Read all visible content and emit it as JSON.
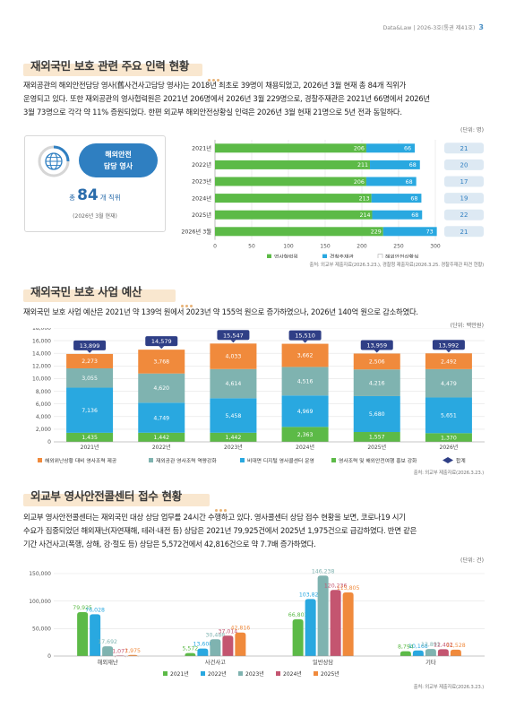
{
  "header": {
    "text": "Data&Law | 2026-3호(통권 제41호)",
    "page": "3"
  },
  "section1": {
    "title": "재외국민 보호 관련 주요 인력 현황",
    "lines": [
      "재외공관의 해외안전담당 영사(舊사건사고담당 영사)는 2018년 최초로 39명이 채용되었고, 2026년 3월 현재 총 84개 직위가",
      "운영되고 있다. 또한 재외공관의 영사협력원은 2021년 206명에서 2026년 3월 229명으로, 경찰주재관은 2021년 66명에서 2026년",
      "3월 73명으로 각각 약 11% 증원되었다. 한편 외교부 해외안전상황실 인력은 2026년 3월 현재 21명으로 5년 전과 동일하다."
    ],
    "unit": "(단위: 명)",
    "staff": {
      "label_line1": "해외안전",
      "label_line2": "담당 영사",
      "total_prefix": "총",
      "total_value": "84",
      "total_suffix": "개 직위",
      "note": "(2026년 3월 현재)"
    },
    "source": "출처: 외교부 제출자료(2026.3.23.), 경찰청 제출자료(2026.3.25. 경찰주재관 파견 현황)"
  },
  "section2": {
    "title": "재외국민 보호 사업 예산",
    "lines": [
      "재외국민 보호 사업 예산은 2021년 약 139억 원에서 2023년 약 155억 원으로 증가하였으나, 2026년 140억 원으로 감소하였다."
    ],
    "unit": "(단위: 백만원)",
    "source": "출처: 외교부 제출자료(2026.3.23.)"
  },
  "section3": {
    "title": "외교부 영사안전콜센터 접수 현황",
    "lines": [
      "외교부 영사안전콜센터는 재외국민 대상 상담 업무를 24시간 수행하고 있다. 영사콜센터 상담 접수 현황을 보면, 코로나19 시기",
      "수요가 집중되었던 해외재난(자연재해, 테러·내전 등) 상담은 2021년 79,925건에서 2025년 1,975건으로 급감하였다. 반면 같은",
      "기간 사건사고(폭행, 상해, 강·절도 등) 상담은 5,572건에서 42,816건으로 약 7.7배 증가하였다."
    ],
    "unit": "(단위: 건)",
    "source": "출처: 외교부 제출자료(2026.3.23.)"
  },
  "colors": {
    "green": "#5cba47",
    "blue": "#29a8e0",
    "teal": "#7fb3b0",
    "orange": "#f08a3c",
    "rose": "#c45570",
    "navy": "#2f3f86"
  },
  "chart_data": [
    {
      "type": "bar",
      "orientation": "horizontal",
      "stacked": true,
      "categories": [
        "2021년",
        "2022년",
        "2023년",
        "2024년",
        "2025년",
        "2026년 3월"
      ],
      "series": [
        {
          "name": "영사협력원",
          "values": [
            206,
            211,
            206,
            213,
            214,
            229
          ]
        },
        {
          "name": "경찰주재관",
          "values": [
            66,
            68,
            68,
            68,
            68,
            73
          ]
        },
        {
          "name": "해외안전상황실",
          "values": [
            21,
            20,
            17,
            19,
            22,
            21
          ]
        }
      ],
      "xlim": [
        0,
        300
      ],
      "xticks": [
        0,
        50,
        100,
        150,
        200,
        250,
        300
      ],
      "grid": true,
      "legend": "bottom-right"
    },
    {
      "type": "bar",
      "stacked": true,
      "categories": [
        "2021년",
        "2022년",
        "2023년",
        "2024년",
        "2025년",
        "2026년"
      ],
      "series": [
        {
          "name": "영사조력 및 해외안전여행 홍보 강화",
          "values": [
            1435,
            1442,
            1442,
            2363,
            1557,
            1370
          ]
        },
        {
          "name": "비대면 디지털 영사콜센터 운영",
          "values": [
            7136,
            4749,
            5458,
            4969,
            5680,
            5651
          ]
        },
        {
          "name": "재외공관 영사조력 역량강화",
          "values": [
            3055,
            4620,
            4614,
            4516,
            4216,
            4479
          ]
        },
        {
          "name": "해외위난상황 대비 영사조력 제공",
          "values": [
            2273,
            3768,
            4033,
            3662,
            2506,
            2492
          ]
        }
      ],
      "totals": {
        "name": "합계",
        "values": [
          13899,
          14579,
          15547,
          15510,
          13959,
          13992
        ]
      },
      "ylim": [
        0,
        18000
      ],
      "yticks": [
        0,
        2000,
        4000,
        6000,
        8000,
        10000,
        12000,
        14000,
        16000,
        18000
      ],
      "grid": true,
      "legend": "bottom"
    },
    {
      "type": "bar",
      "categories": [
        "해외재난",
        "사건사고",
        "일반상담",
        "기타"
      ],
      "series": [
        {
          "name": "2021년",
          "values": [
            79925,
            5572,
            66801,
            8794
          ]
        },
        {
          "name": "2022년",
          "values": [
            76028,
            13608,
            103829,
            10168
          ]
        },
        {
          "name": "2023년",
          "values": [
            17692,
            30488,
            146238,
            12891
          ]
        },
        {
          "name": "2024년",
          "values": [
            1077,
            37014,
            120236,
            12402
          ]
        },
        {
          "name": "2025년",
          "values": [
            1975,
            42816,
            115805,
            11528
          ]
        }
      ],
      "ylim": [
        0,
        150000
      ],
      "yticks": [
        0,
        50000,
        100000,
        150000
      ],
      "grid": true,
      "legend": "bottom"
    }
  ]
}
